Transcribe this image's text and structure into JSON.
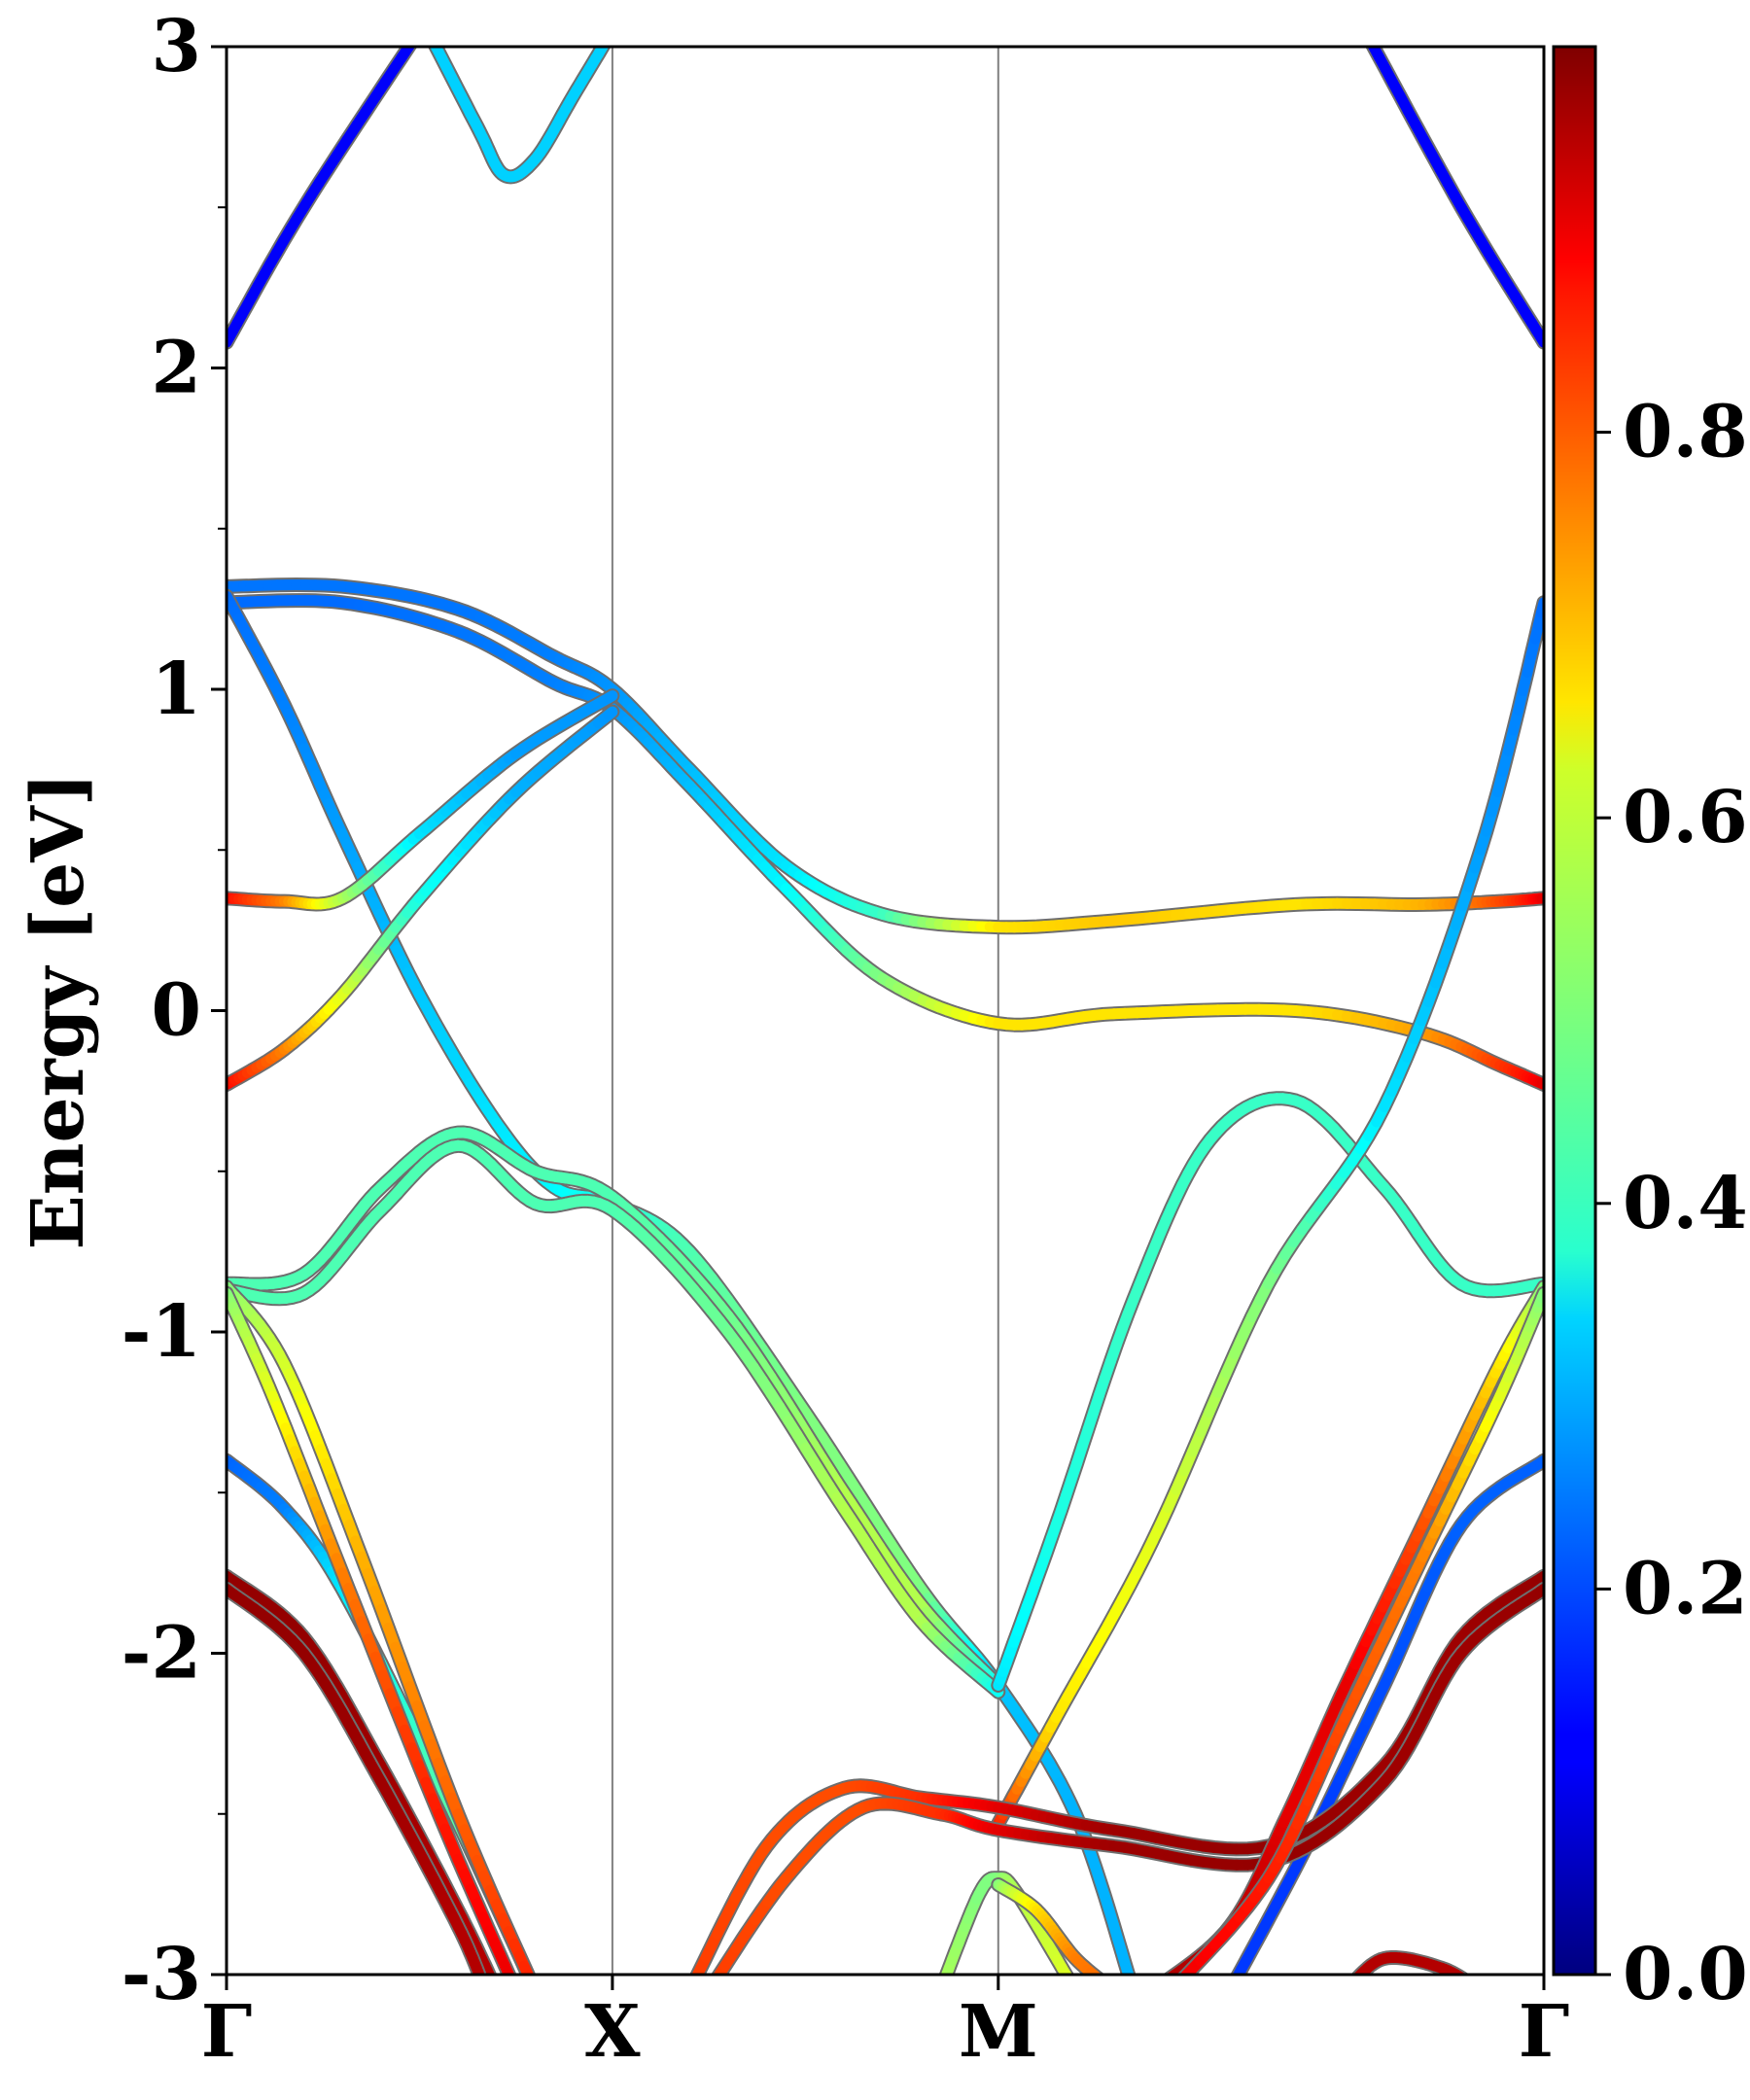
{
  "chart_data": {
    "type": "line",
    "ylabel": "Energy [eV]",
    "ylim": [
      -3,
      3
    ],
    "y_ticks": [
      {
        "value": 3,
        "label": "3"
      },
      {
        "value": 2,
        "label": "2"
      },
      {
        "value": 1,
        "label": "1"
      },
      {
        "value": 0,
        "label": "0"
      },
      {
        "value": -1,
        "label": "-1"
      },
      {
        "value": -2,
        "label": "-2"
      },
      {
        "value": -3,
        "label": "-3"
      }
    ],
    "y_minor_ticks": [
      2.5,
      1.5,
      0.5,
      -0.5,
      -1.5,
      -2.5
    ],
    "kpoints": [
      {
        "position": 0.0,
        "label": "Γ"
      },
      {
        "position": 1.0,
        "label": "X"
      },
      {
        "position": 2.0,
        "label": "M"
      },
      {
        "position": 3.414,
        "label": "Γ"
      }
    ],
    "colorbar": {
      "colormap": "jet",
      "range": [
        0.0,
        1.0
      ],
      "ticks": [
        {
          "value": 0.0,
          "label": "0.0"
        },
        {
          "value": 0.2,
          "label": "0.2"
        },
        {
          "value": 0.4,
          "label": "0.4"
        },
        {
          "value": 0.6,
          "label": "0.6"
        },
        {
          "value": 0.8,
          "label": "0.8"
        }
      ]
    },
    "bands": [
      {
        "points": [
          [
            0.0,
            2.08,
            0.12
          ],
          [
            0.2,
            2.5,
            0.12
          ],
          [
            0.5,
            3.05,
            0.12
          ]
        ]
      },
      {
        "points": [
          [
            0.5,
            3.1,
            0.33
          ],
          [
            0.65,
            2.75,
            0.33
          ],
          [
            0.72,
            2.6,
            0.33
          ],
          [
            0.8,
            2.65,
            0.33
          ],
          [
            0.9,
            2.85,
            0.33
          ],
          [
            1.0,
            3.05,
            0.33
          ]
        ]
      },
      {
        "points": [
          [
            3.414,
            2.08,
            0.12
          ],
          [
            3.2,
            2.5,
            0.12
          ],
          [
            2.95,
            3.05,
            0.12
          ]
        ]
      },
      {
        "points": [
          [
            0.0,
            1.32,
            0.24
          ],
          [
            0.3,
            1.32,
            0.24
          ],
          [
            0.6,
            1.25,
            0.24
          ],
          [
            0.85,
            1.1,
            0.25
          ],
          [
            1.0,
            1.0,
            0.27
          ],
          [
            1.2,
            0.75,
            0.31
          ],
          [
            1.45,
            0.45,
            0.35
          ],
          [
            1.7,
            0.3,
            0.43
          ],
          [
            2.0,
            0.26,
            0.65
          ],
          [
            2.3,
            0.28,
            0.68
          ],
          [
            2.77,
            0.33,
            0.65
          ],
          [
            3.1,
            0.33,
            0.7
          ],
          [
            3.3,
            0.34,
            0.8
          ],
          [
            3.414,
            0.35,
            0.9
          ]
        ]
      },
      {
        "points": [
          [
            0.0,
            1.27,
            0.23
          ],
          [
            0.3,
            1.27,
            0.23
          ],
          [
            0.6,
            1.18,
            0.24
          ],
          [
            0.85,
            1.02,
            0.25
          ],
          [
            1.0,
            0.94,
            0.27
          ],
          [
            1.2,
            0.7,
            0.31
          ],
          [
            1.45,
            0.38,
            0.37
          ],
          [
            1.7,
            0.1,
            0.5
          ],
          [
            2.0,
            -0.04,
            0.65
          ],
          [
            2.3,
            -0.01,
            0.65
          ],
          [
            2.77,
            0.0,
            0.65
          ],
          [
            3.1,
            -0.07,
            0.72
          ],
          [
            3.3,
            -0.17,
            0.82
          ],
          [
            3.414,
            -0.23,
            0.9
          ]
        ]
      },
      {
        "points": [
          [
            0.0,
            1.29,
            0.23
          ],
          [
            0.15,
            0.95,
            0.25
          ],
          [
            0.3,
            0.55,
            0.28
          ],
          [
            0.5,
            0.05,
            0.32
          ],
          [
            0.7,
            -0.35,
            0.35
          ],
          [
            0.85,
            -0.55,
            0.37
          ],
          [
            1.0,
            -0.6,
            0.4
          ],
          [
            1.2,
            -0.75,
            0.45
          ],
          [
            1.5,
            -1.25,
            0.5
          ],
          [
            1.8,
            -1.8,
            0.5
          ],
          [
            2.0,
            -2.1,
            0.32
          ],
          [
            2.2,
            -2.5,
            0.3
          ],
          [
            2.35,
            -3.05,
            0.3
          ]
        ]
      },
      {
        "points": [
          [
            0.0,
            0.35,
            0.88
          ],
          [
            0.15,
            0.34,
            0.75
          ],
          [
            0.3,
            0.35,
            0.55
          ],
          [
            0.5,
            0.55,
            0.35
          ],
          [
            0.75,
            0.8,
            0.28
          ],
          [
            1.0,
            0.98,
            0.27
          ]
        ]
      },
      {
        "points": [
          [
            0.0,
            -0.23,
            0.88
          ],
          [
            0.15,
            -0.12,
            0.75
          ],
          [
            0.3,
            0.05,
            0.6
          ],
          [
            0.5,
            0.35,
            0.4
          ],
          [
            0.75,
            0.68,
            0.3
          ],
          [
            1.0,
            0.93,
            0.27
          ]
        ]
      },
      {
        "points": [
          [
            0.0,
            -0.85,
            0.45
          ],
          [
            0.2,
            -0.82,
            0.45
          ],
          [
            0.4,
            -0.55,
            0.45
          ],
          [
            0.6,
            -0.38,
            0.45
          ],
          [
            0.8,
            -0.5,
            0.45
          ],
          [
            1.0,
            -0.58,
            0.45
          ],
          [
            1.3,
            -0.95,
            0.48
          ],
          [
            1.6,
            -1.5,
            0.55
          ],
          [
            1.8,
            -1.85,
            0.55
          ],
          [
            2.0,
            -2.1,
            0.38
          ]
        ]
      },
      {
        "points": [
          [
            0.0,
            -0.87,
            0.45
          ],
          [
            0.2,
            -0.88,
            0.45
          ],
          [
            0.4,
            -0.62,
            0.45
          ],
          [
            0.6,
            -0.42,
            0.45
          ],
          [
            0.8,
            -0.6,
            0.45
          ],
          [
            1.0,
            -0.62,
            0.45
          ],
          [
            1.3,
            -1.0,
            0.48
          ],
          [
            1.6,
            -1.55,
            0.55
          ],
          [
            1.8,
            -1.9,
            0.55
          ],
          [
            2.0,
            -2.12,
            0.38
          ]
        ]
      },
      {
        "points": [
          [
            2.0,
            -2.1,
            0.35
          ],
          [
            2.15,
            -1.6,
            0.4
          ],
          [
            2.35,
            -0.9,
            0.43
          ],
          [
            2.55,
            -0.4,
            0.43
          ],
          [
            2.77,
            -0.28,
            0.43
          ],
          [
            3.0,
            -0.55,
            0.43
          ],
          [
            3.2,
            -0.85,
            0.43
          ],
          [
            3.414,
            -0.85,
            0.43
          ]
        ]
      },
      {
        "points": [
          [
            2.0,
            -2.53,
            0.85
          ],
          [
            2.15,
            -2.2,
            0.65
          ],
          [
            2.4,
            -1.65,
            0.6
          ],
          [
            2.7,
            -0.85,
            0.5
          ],
          [
            3.0,
            -0.3,
            0.35
          ],
          [
            3.25,
            0.5,
            0.28
          ],
          [
            3.414,
            1.27,
            0.23
          ]
        ]
      },
      {
        "points": [
          [
            2.6,
            -3.05,
            0.18
          ],
          [
            2.8,
            -2.6,
            0.18
          ],
          [
            3.0,
            -2.1,
            0.2
          ],
          [
            3.2,
            -1.6,
            0.22
          ],
          [
            3.414,
            -1.4,
            0.22
          ]
        ]
      },
      {
        "points": [
          [
            0.0,
            -1.4,
            0.22
          ],
          [
            0.15,
            -1.55,
            0.25
          ],
          [
            0.3,
            -1.8,
            0.35
          ],
          [
            0.55,
            -2.4,
            0.45
          ],
          [
            0.8,
            -3.05,
            0.5
          ]
        ]
      },
      {
        "points": [
          [
            0.0,
            -0.86,
            0.5
          ],
          [
            0.15,
            -1.1,
            0.58
          ],
          [
            0.35,
            -1.7,
            0.7
          ],
          [
            0.6,
            -2.5,
            0.78
          ],
          [
            0.8,
            -3.05,
            0.85
          ]
        ]
      },
      {
        "points": [
          [
            0.0,
            -0.88,
            0.5
          ],
          [
            0.12,
            -1.2,
            0.6
          ],
          [
            0.3,
            -1.75,
            0.75
          ],
          [
            0.55,
            -2.5,
            0.85
          ],
          [
            0.75,
            -3.05,
            0.9
          ]
        ]
      },
      {
        "points": [
          [
            0.0,
            -1.76,
            0.98
          ],
          [
            0.2,
            -1.95,
            0.98
          ],
          [
            0.4,
            -2.35,
            0.97
          ],
          [
            0.6,
            -2.8,
            0.95
          ],
          [
            0.7,
            -3.05,
            0.95
          ]
        ]
      },
      {
        "points": [
          [
            0.0,
            -1.8,
            0.98
          ],
          [
            0.2,
            -2.0,
            0.98
          ],
          [
            0.4,
            -2.4,
            0.97
          ],
          [
            0.6,
            -2.85,
            0.95
          ],
          [
            0.67,
            -3.05,
            0.95
          ]
        ]
      },
      {
        "points": [
          [
            1.2,
            -3.05,
            0.82
          ],
          [
            1.4,
            -2.6,
            0.8
          ],
          [
            1.6,
            -2.42,
            0.8
          ],
          [
            1.8,
            -2.45,
            0.83
          ],
          [
            2.0,
            -2.48,
            0.9
          ],
          [
            2.3,
            -2.55,
            0.97
          ],
          [
            2.7,
            -2.6,
            0.98
          ],
          [
            3.0,
            -2.35,
            0.97
          ],
          [
            3.2,
            -1.95,
            0.97
          ],
          [
            3.414,
            -1.76,
            0.98
          ]
        ]
      },
      {
        "points": [
          [
            1.25,
            -3.05,
            0.82
          ],
          [
            1.45,
            -2.7,
            0.8
          ],
          [
            1.65,
            -2.48,
            0.8
          ],
          [
            1.85,
            -2.5,
            0.83
          ],
          [
            2.0,
            -2.55,
            0.9
          ],
          [
            2.3,
            -2.6,
            0.97
          ],
          [
            2.7,
            -2.65,
            0.98
          ],
          [
            3.0,
            -2.4,
            0.97
          ],
          [
            3.2,
            -2.0,
            0.97
          ],
          [
            3.414,
            -1.8,
            0.98
          ]
        ]
      },
      {
        "points": [
          [
            2.4,
            -3.05,
            0.95
          ],
          [
            2.6,
            -2.85,
            0.95
          ],
          [
            2.75,
            -2.5,
            0.9
          ],
          [
            2.9,
            -2.1,
            0.9
          ],
          [
            3.1,
            -1.6,
            0.8
          ],
          [
            3.3,
            -1.1,
            0.65
          ],
          [
            3.414,
            -0.86,
            0.5
          ]
        ]
      },
      {
        "points": [
          [
            2.45,
            -3.05,
            0.9
          ],
          [
            2.7,
            -2.7,
            0.85
          ],
          [
            2.9,
            -2.2,
            0.8
          ],
          [
            3.1,
            -1.7,
            0.75
          ],
          [
            3.3,
            -1.2,
            0.6
          ],
          [
            3.414,
            -0.88,
            0.5
          ]
        ]
      },
      {
        "points": [
          [
            1.85,
            -3.05,
            0.55
          ],
          [
            1.95,
            -2.75,
            0.5
          ],
          [
            2.0,
            -2.7,
            0.5
          ],
          [
            2.05,
            -2.75,
            0.55
          ],
          [
            2.2,
            -3.05,
            0.6
          ]
        ]
      },
      {
        "points": [
          [
            2.0,
            -2.72,
            0.5
          ],
          [
            2.1,
            -2.8,
            0.65
          ],
          [
            2.2,
            -2.95,
            0.75
          ],
          [
            2.3,
            -3.05,
            0.78
          ]
        ]
      },
      {
        "points": [
          [
            2.9,
            -3.05,
            0.95
          ],
          [
            3.0,
            -2.95,
            0.95
          ],
          [
            3.15,
            -2.98,
            0.95
          ],
          [
            3.25,
            -3.05,
            0.95
          ]
        ]
      }
    ]
  }
}
